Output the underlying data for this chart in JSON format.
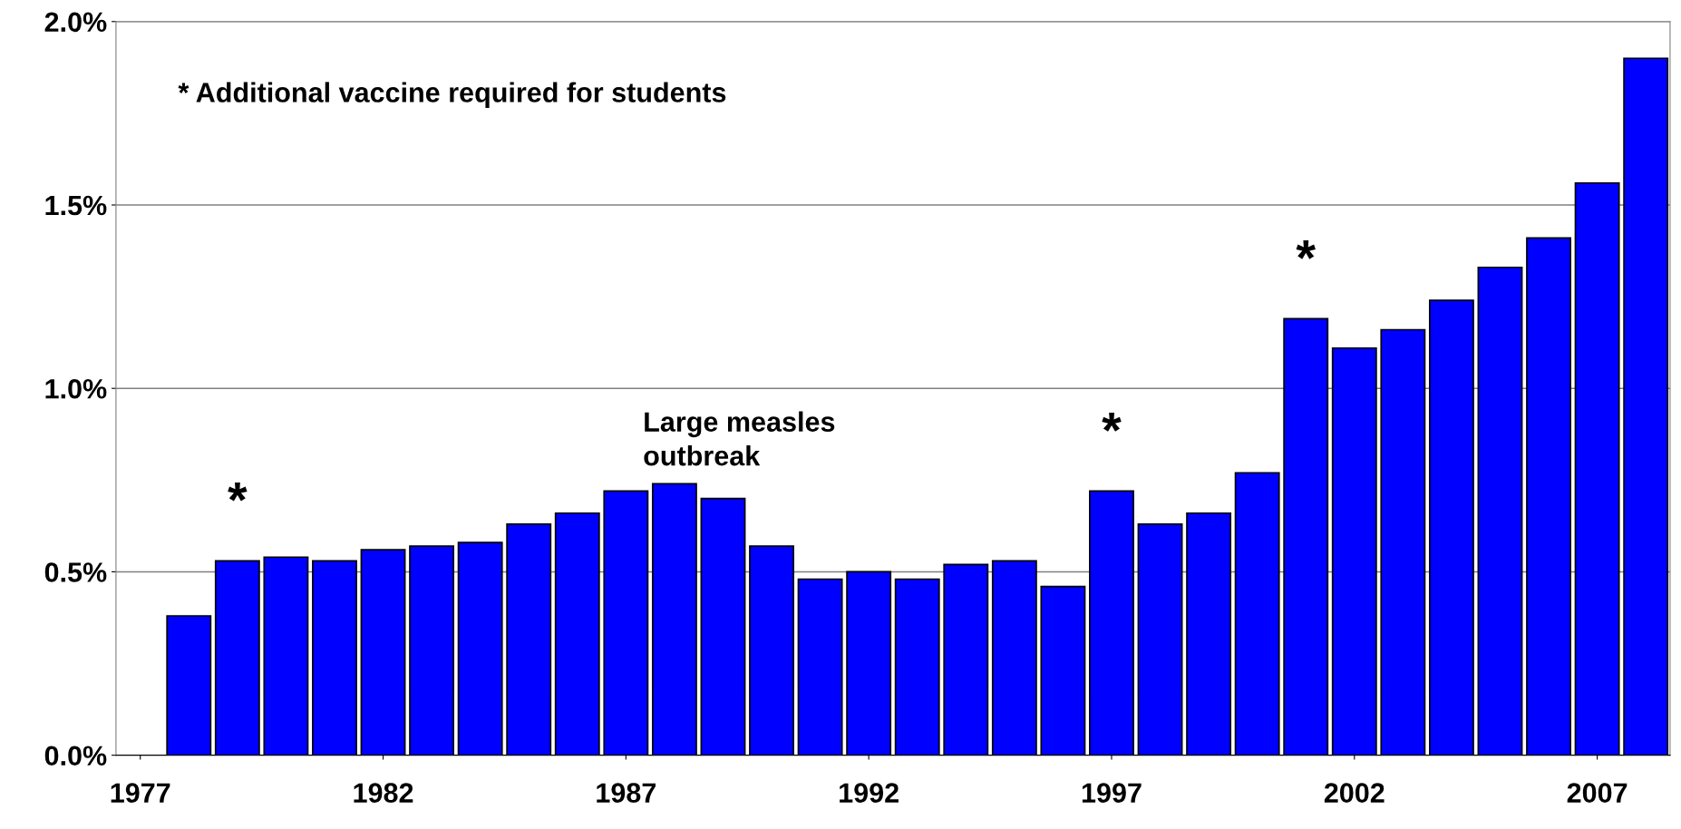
{
  "chart_data": {
    "type": "bar",
    "x": [
      1978,
      1979,
      1980,
      1981,
      1982,
      1983,
      1984,
      1985,
      1986,
      1987,
      1988,
      1989,
      1990,
      1991,
      1992,
      1993,
      1994,
      1995,
      1996,
      1997,
      1998,
      1999,
      2000,
      2001,
      2002,
      2003,
      2004,
      2005,
      2006,
      2007,
      2008
    ],
    "values": [
      0.38,
      0.53,
      0.54,
      0.53,
      0.56,
      0.57,
      0.58,
      0.63,
      0.66,
      0.72,
      0.74,
      0.7,
      0.57,
      0.48,
      0.5,
      0.48,
      0.52,
      0.53,
      0.46,
      0.72,
      0.63,
      0.66,
      0.77,
      1.19,
      1.11,
      1.16,
      1.24,
      1.33,
      1.41,
      1.56,
      1.9
    ],
    "color": "#0000ff",
    "xlim": [
      1976.5,
      2008.5
    ],
    "xticks": [
      1977,
      1982,
      1987,
      1992,
      1997,
      2002,
      2007
    ],
    "ylim": [
      0,
      2.0
    ],
    "yticks": [
      {
        "value": 0,
        "label": "0.0%"
      },
      {
        "value": 0.5,
        "label": "0.5%"
      },
      {
        "value": 1.0,
        "label": "1.0%"
      },
      {
        "value": 1.5,
        "label": "1.5%"
      },
      {
        "value": 2.0,
        "label": "2.0%"
      }
    ],
    "grid": "y",
    "annotations": [
      "* Additional vaccine required for students",
      {
        "text": "*",
        "x": 1979,
        "y": 0.53
      },
      {
        "text": "*",
        "x": 1997,
        "y": 0.72
      },
      {
        "text": "*",
        "x": 2001,
        "y": 1.19
      },
      {
        "text": "Large measles\noutbreak",
        "x": 1988,
        "y": 0.74
      }
    ]
  }
}
